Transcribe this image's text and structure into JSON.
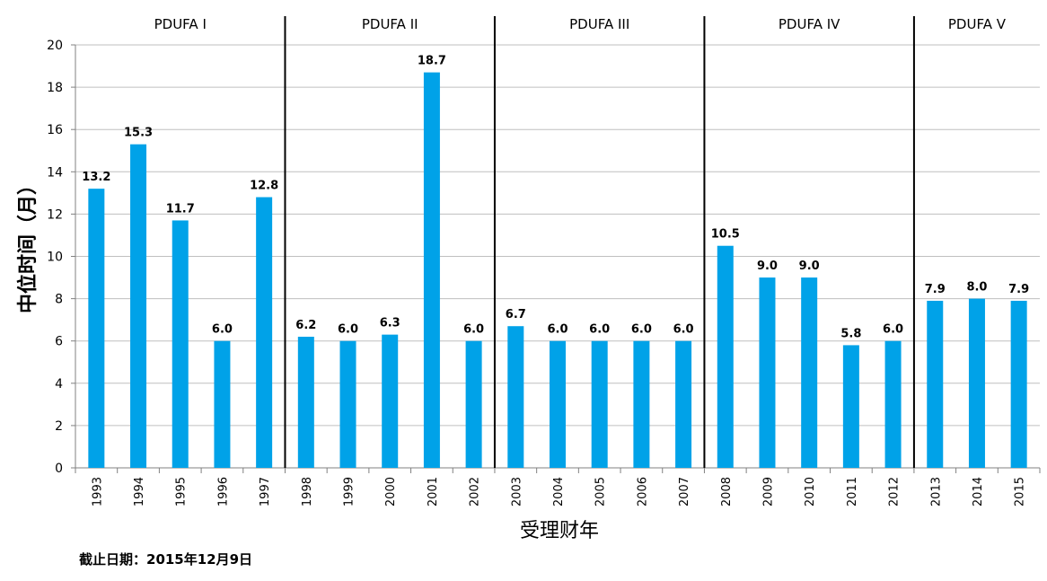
{
  "chart_data": {
    "type": "bar",
    "categories": [
      "1993",
      "1994",
      "1995",
      "1996",
      "1997",
      "1998",
      "1999",
      "2000",
      "2001",
      "2002",
      "2003",
      "2004",
      "2005",
      "2006",
      "2007",
      "2008",
      "2009",
      "2010",
      "2011",
      "2012",
      "2013",
      "2014",
      "2015"
    ],
    "values": [
      13.2,
      15.3,
      11.7,
      6.0,
      12.8,
      6.2,
      6.0,
      6.3,
      18.7,
      6.0,
      6.7,
      6.0,
      6.0,
      6.0,
      6.0,
      10.5,
      9.0,
      9.0,
      5.8,
      6.0,
      7.9,
      8.0,
      7.9
    ],
    "data_labels": [
      "13.2",
      "15.3",
      "11.7",
      "6.0",
      "12.8",
      "6.2",
      "6.0",
      "6.3",
      "18.7",
      "6.0",
      "6.7",
      "6.0",
      "6.0",
      "6.0",
      "6.0",
      "10.5",
      "9.0",
      "9.0",
      "5.8",
      "6.0",
      "7.9",
      "8.0",
      "7.9"
    ],
    "xlabel": "受理财年",
    "ylabel": "中位时间（月）",
    "ylim": [
      0,
      20
    ],
    "yticks": [
      0,
      2,
      4,
      6,
      8,
      10,
      12,
      14,
      16,
      18,
      20
    ],
    "grid": true,
    "bar_color": "#00A2E8",
    "phases": [
      {
        "label": "PDUFA I",
        "start": 0,
        "end": 4
      },
      {
        "label": "PDUFA II",
        "start": 5,
        "end": 9
      },
      {
        "label": "PDUFA III",
        "start": 10,
        "end": 14
      },
      {
        "label": "PDUFA IV",
        "start": 15,
        "end": 19
      },
      {
        "label": "PDUFA V",
        "start": 20,
        "end": 22
      }
    ]
  },
  "footnote": "截止日期：2015年12月9日"
}
